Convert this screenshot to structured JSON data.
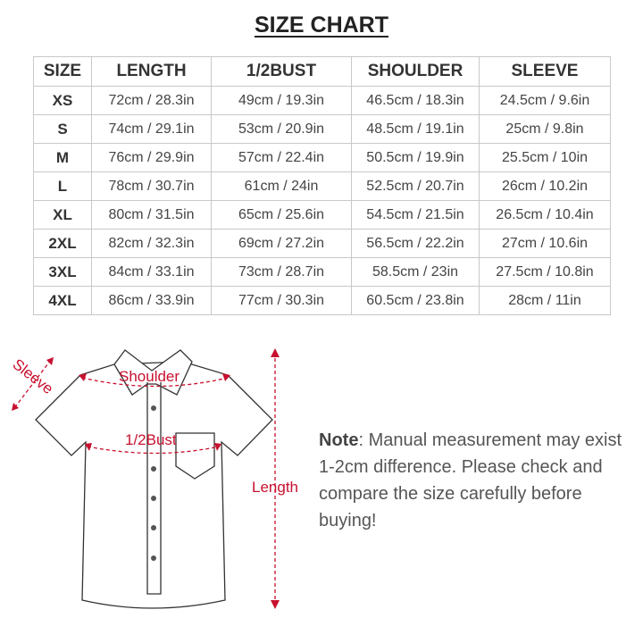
{
  "title": "SIZE CHART",
  "table": {
    "headers": [
      "SIZE",
      "LENGTH",
      "1/2BUST",
      "SHOULDER",
      "SLEEVE"
    ],
    "rows": [
      [
        "XS",
        "72cm / 28.3in",
        "49cm / 19.3in",
        "46.5cm / 18.3in",
        "24.5cm / 9.6in"
      ],
      [
        "S",
        "74cm / 29.1in",
        "53cm / 20.9in",
        "48.5cm / 19.1in",
        "25cm / 9.8in"
      ],
      [
        "M",
        "76cm / 29.9in",
        "57cm / 22.4in",
        "50.5cm / 19.9in",
        "25.5cm / 10in"
      ],
      [
        "L",
        "78cm / 30.7in",
        "61cm / 24in",
        "52.5cm / 20.7in",
        "26cm / 10.2in"
      ],
      [
        "XL",
        "80cm / 31.5in",
        "65cm / 25.6in",
        "54.5cm / 21.5in",
        "26.5cm / 10.4in"
      ],
      [
        "2XL",
        "82cm / 32.3in",
        "69cm / 27.2in",
        "56.5cm / 22.2in",
        "27cm / 10.6in"
      ],
      [
        "3XL",
        "84cm / 33.1in",
        "73cm / 28.7in",
        "58.5cm / 23in",
        "27.5cm / 10.8in"
      ],
      [
        "4XL",
        "86cm / 33.9in",
        "77cm / 30.3in",
        "60.5cm / 23.8in",
        "28cm / 11in"
      ]
    ]
  },
  "diagram": {
    "sleeve": "Sleeve",
    "shoulder": "Shoulder",
    "bust": "1/2Bust",
    "length": "Length",
    "accent": "#c8102e"
  },
  "note": {
    "label": "Note",
    "text": ": Manual measurement may exist 1-2cm difference. Please check and compare the size carefully before buying!"
  }
}
